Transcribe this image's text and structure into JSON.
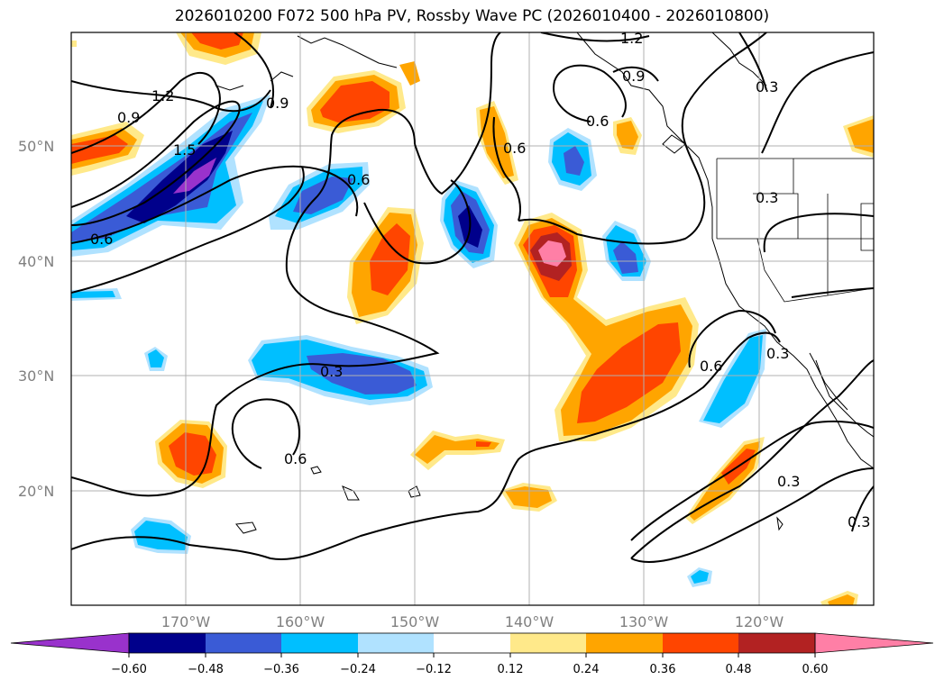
{
  "title": "2026010200 F072 500 hPa PV, Rossby Wave PC (2026010400 - 2026010800)",
  "map": {
    "latitude_labels": [
      "50°N",
      "40°N",
      "30°N",
      "20°N"
    ],
    "longitude_labels": [
      "170°W",
      "160°W",
      "150°W",
      "140°W",
      "130°W",
      "120°W"
    ],
    "contour_labels": [
      "0.9",
      "1.2",
      "1.5",
      "0.6",
      "0.9",
      "0.6",
      "0.6",
      "0.3",
      "0.6",
      "0.6",
      "0.3",
      "0.3",
      "0.6",
      "0.3",
      "0.3",
      "1.2",
      "0.9",
      "0.3"
    ]
  },
  "colorbar": {
    "ticks": [
      "−0.60",
      "−0.48",
      "−0.36",
      "−0.24",
      "−0.12",
      "0.12",
      "0.24",
      "0.36",
      "0.48",
      "0.60"
    ],
    "colors": [
      "#9932cc",
      "#00008b",
      "#3a5bd6",
      "#00bfff",
      "#b0e2ff",
      "#ffffff",
      "#ffe98a",
      "#ffa500",
      "#ff4500",
      "#b22222",
      "#ff7fa6"
    ]
  }
}
